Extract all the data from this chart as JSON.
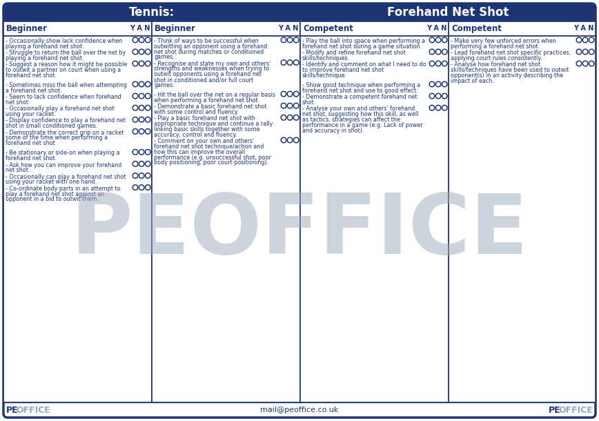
{
  "title_left": "Tennis:",
  "title_right": "Forehand Net Shot",
  "bg_color": "#ffffff",
  "header_bg": "#1e3575",
  "header_text_color": "#ffffff",
  "border_color": "#1e3575",
  "text_color": "#1e3575",
  "watermark": "PEOFFICE",
  "watermark_color": "#9daabf",
  "footer_email": "mail@peoffice.co.uk",
  "col_headers": [
    "Beginner",
    "Beginner",
    "Competent",
    "Competent"
  ],
  "col1_items": [
    {
      "text": "- Occasionally show lack confidence when\nplaying a forehand net shot.",
      "circles": true
    },
    {
      "text": "- Struggle to return the ball over the net by\nplaying a forehand net shot.",
      "circles": true
    },
    {
      "text": "- Suggest a reason how it might be possible\nto outwit a partner on court when using a\nforehand net shot.",
      "circles": true
    },
    {
      "text": "",
      "circles": false
    },
    {
      "text": "- Sometimes miss the ball when attempting\na forehand net shot.",
      "circles": true
    },
    {
      "text": "- Seem to lack confidence when forehand\nnet shot.",
      "circles": true
    },
    {
      "text": "- Occasionally play a forehand net shot\nusing your racket.",
      "circles": true
    },
    {
      "text": "- Display confidence to play a forehand net\nshot in small conditioned games.",
      "circles": true
    },
    {
      "text": "- Demonstrate the correct grip on a racket\nsome of the time when performing a\nforehand net shot.",
      "circles": true
    },
    {
      "text": "",
      "circles": false
    },
    {
      "text": "- Be stationary or side-on when playing a\nforehand net shot.",
      "circles": true
    },
    {
      "text": "- Ask how you can improve your forehand\nnet shot.",
      "circles": true
    },
    {
      "text": "- Occasionally can play a forehand net shot\nusing your racket with one hand.",
      "circles": true
    },
    {
      "text": "- Co-ordinate body parts in an attempt to\nplay a forehand net shot against an\nopponent in a bid to outwit them.",
      "circles": true
    }
  ],
  "col2_items": [
    {
      "text": "- Think of ways to be successful when\noutwitting an opponent using a forehand\nnet shot during matches or conditioned\ngames.",
      "circles": true
    },
    {
      "text": "- Recognise and state my own and others'\nstrengths and weaknesses when trying to\noutwit opponents using a forehand net\nshot in conditioned and/or full court\ngames.",
      "circles": true
    },
    {
      "text": "",
      "circles": false
    },
    {
      "text": "- Hit the ball over the net on a regular basis\nwhen performing a forehand net shot.",
      "circles": true
    },
    {
      "text": "- Demonstrate a basic forehand net shot\nwith some control and fluency.",
      "circles": true
    },
    {
      "text": "- Play a basic forehand net shot with\nappropriate technique and continue a rally\nlinking basic skills together with some\naccuracy, control and fluency.",
      "circles": true
    },
    {
      "text": "- Comment on your own and others'\nforehand net shot technique/action and\nhow this can improve the overall\nperformance (e.g. unsuccessful shot, poor\nbody positioning, poor court positioning).",
      "circles": true
    }
  ],
  "col3_items": [
    {
      "text": "- Play the ball into space when performing a\nforehand net shot during a game situation.",
      "circles": true
    },
    {
      "text": "- Modify and refine forehand net shot\nskills/techniques.",
      "circles": true
    },
    {
      "text": "- Identify and comment on what I need to do\nto improve forehand net shot\nskills/technique.",
      "circles": true
    },
    {
      "text": "",
      "circles": false
    },
    {
      "text": "- Show good technique when performing a\nforehand net shot and use to good effect.",
      "circles": true
    },
    {
      "text": "- Demonstrate a competent forehand net\nshot.",
      "circles": true
    },
    {
      "text": "- Analyse your own and others' forehand\nnet shot, suggesting how this skill, as well\nas tactics, strategies can affect the\nperformance in a game (e.g. Lack of power\nand accuracy in shot).",
      "circles": true
    }
  ],
  "col4_items": [
    {
      "text": "- Make very few unforced errors when\nperforming a forehand net shot.",
      "circles": true
    },
    {
      "text": "- Lead forehand net shot specific practices,\napplying court rules consistently.",
      "circles": true
    },
    {
      "text": "- Analyse how forehand net shot\nskills/techniques have been used to outwit\nopponent(s) in an activity describing the\nimpact of each.",
      "circles": true
    }
  ]
}
